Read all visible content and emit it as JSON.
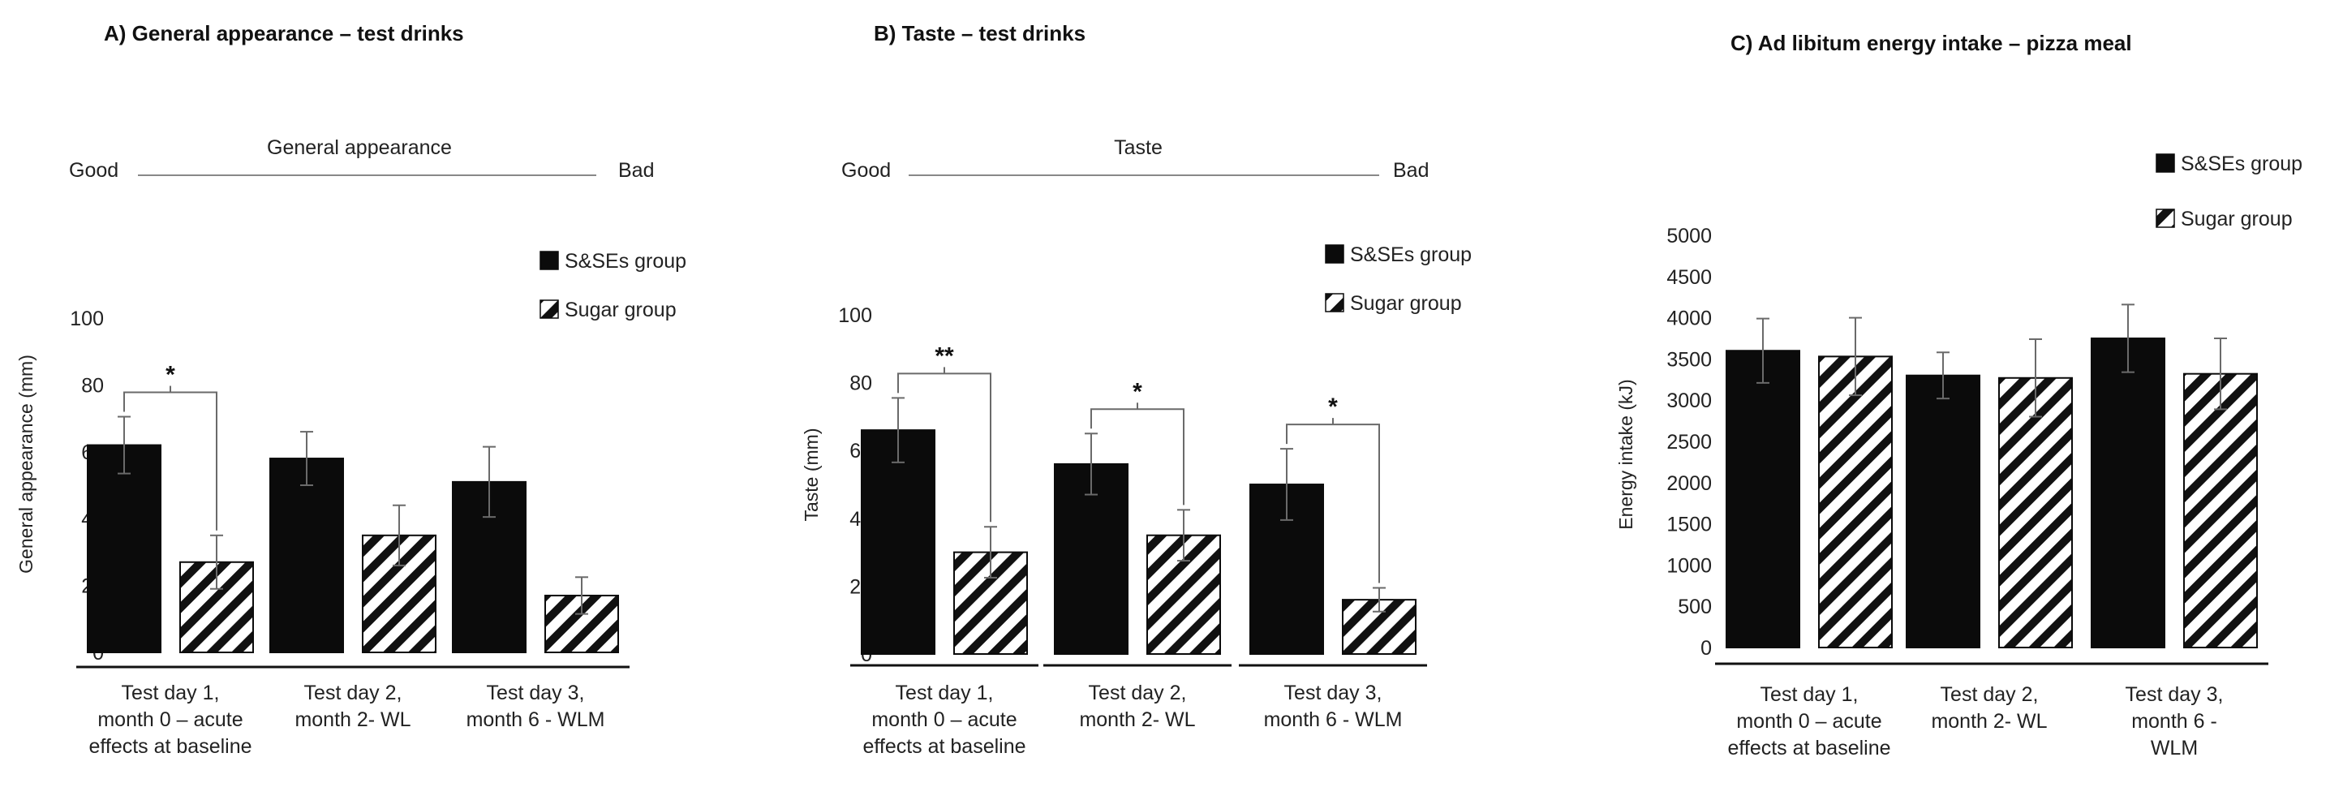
{
  "chart_data": [
    {
      "type": "bar",
      "title": "A) General appearance – test drinks",
      "scale": {
        "label": "General appearance",
        "left": "Good",
        "right": "Bad"
      },
      "ylabel": "General appearance  (mm)",
      "xlabel": "",
      "ylim": [
        0,
        100
      ],
      "yticks": [
        0,
        20,
        40,
        60,
        80,
        100
      ],
      "categories": [
        [
          "Test day 1,",
          "month 0 – acute",
          "effects at baseline"
        ],
        [
          "Test day 2,",
          "month 2- WL"
        ],
        [
          "Test day 3,",
          "month 6 - WLM"
        ]
      ],
      "series": [
        {
          "name": "S&SEs group",
          "pattern": "solid",
          "values": [
            62,
            58,
            51
          ],
          "errors": [
            8.5,
            8,
            10.5
          ]
        },
        {
          "name": "Sugar group",
          "pattern": "hatched",
          "values": [
            27,
            35,
            17
          ],
          "errors": [
            8,
            9,
            5.5
          ]
        }
      ],
      "significance": [
        {
          "category": 0,
          "label": "*"
        }
      ],
      "legend": "top-right"
    },
    {
      "type": "bar",
      "title": "B) Taste – test drinks",
      "scale": {
        "label": "Taste",
        "left": "Good",
        "right": "Bad"
      },
      "ylabel": "Taste  (mm)",
      "xlabel": "",
      "ylim": [
        0,
        100
      ],
      "yticks": [
        0,
        20,
        40,
        60,
        80,
        100
      ],
      "categories": [
        [
          "Test day 1,",
          "month 0 – acute",
          "effects at baseline"
        ],
        [
          "Test day 2,",
          "month 2- WL"
        ],
        [
          "Test day 3,",
          "month 6 - WLM"
        ]
      ],
      "series": [
        {
          "name": "S&SEs group",
          "pattern": "solid",
          "values": [
            66,
            56,
            50
          ],
          "errors": [
            9.5,
            9,
            10.5
          ]
        },
        {
          "name": "Sugar group",
          "pattern": "hatched",
          "values": [
            30,
            35,
            16
          ],
          "errors": [
            7.5,
            7.5,
            3.5
          ]
        }
      ],
      "significance": [
        {
          "category": 0,
          "label": "**"
        },
        {
          "category": 1,
          "label": "*"
        },
        {
          "category": 2,
          "label": "*"
        }
      ],
      "legend": "top-right"
    },
    {
      "type": "bar",
      "title": "C) Ad libitum energy intake – pizza meal",
      "ylabel": "Energy intake  (kJ)",
      "xlabel": "",
      "ylim": [
        0,
        5000
      ],
      "yticks": [
        0,
        500,
        1000,
        1500,
        2000,
        2500,
        3000,
        3500,
        4000,
        4500,
        5000
      ],
      "categories": [
        [
          "Test day 1,",
          "month 0 – acute",
          "effects at baseline"
        ],
        [
          "Test day 2,",
          "month 2- WL"
        ],
        [
          "Test day 3,",
          "month 6 -",
          "WLM"
        ]
      ],
      "series": [
        {
          "name": "S&SEs group",
          "pattern": "solid",
          "values": [
            3600,
            3300,
            3750
          ],
          "errors": [
            390,
            280,
            410
          ]
        },
        {
          "name": "Sugar group",
          "pattern": "hatched",
          "values": [
            3530,
            3270,
            3320
          ],
          "errors": [
            470,
            470,
            430
          ]
        }
      ],
      "significance": [],
      "legend": "top-right"
    }
  ]
}
